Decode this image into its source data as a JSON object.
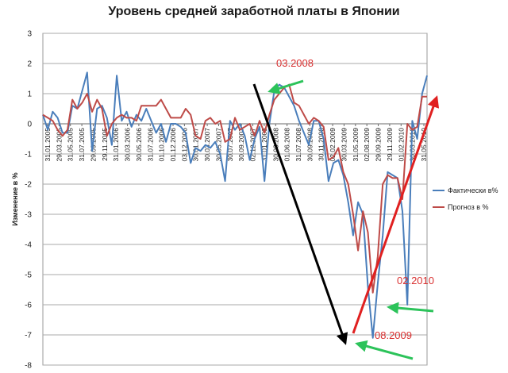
{
  "chart_data": {
    "type": "line",
    "title": "Уровень  средней заработной платы в Японии",
    "xlabel": "",
    "ylabel": "Изменение в %",
    "ylim": [
      -8,
      3
    ],
    "yticks": [
      "3",
      "2",
      "1",
      "0",
      "-1",
      "-2",
      "-3",
      "-4",
      "-5",
      "-6",
      "-7",
      "-8"
    ],
    "grid": true,
    "legend": "right",
    "x_tick_labels": [
      "31.01.2005",
      "29.03.2005",
      "31.05.2005",
      "31.07.2005",
      "29.09.2005",
      "29.11.2005",
      "31.01.2006",
      "30.03.2006",
      "30.05.2006",
      "31.07.2006",
      "01.10.2006",
      "01.12.2006",
      "03.12.2006",
      "30.01.2007",
      "30.03.2007",
      "30.05.2007",
      "30.07.2007",
      "30.09.2007",
      "02.12.2007",
      "31.01.2008",
      "30.03.2008",
      "01.06.2008",
      "31.07.2008",
      "30.09.2008",
      "30.11.2008",
      "02.02.2009",
      "30.03.2009",
      "31.05.2009",
      "02.08.2009",
      "29.09.2009",
      "29.11.2009",
      "01.02.2010",
      "30.03.2010",
      "31.05.2010"
    ],
    "series": [
      {
        "name": "Фактически в%",
        "color": "#4a7ebb",
        "values": [
          0.3,
          -0.2,
          0.4,
          0.2,
          -0.3,
          -0.3,
          0.6,
          0.5,
          1.1,
          1.7,
          -0.9,
          0.5,
          0.6,
          0.2,
          -0.7,
          1.6,
          0.1,
          0.4,
          -0.1,
          0.3,
          0.1,
          0.5,
          0.1,
          -0.3,
          0.0,
          -0.6,
          0.0,
          0.0,
          -0.1,
          -0.3,
          -1.3,
          -0.8,
          -0.9,
          -0.7,
          -0.8,
          -0.6,
          -1.0,
          -1.9,
          0.1,
          -0.2,
          0.0,
          -0.4,
          -1.2,
          -0.5,
          -0.1,
          -1.9,
          0.0,
          1.1,
          1.3,
          1.2,
          0.9,
          0.6,
          0.1,
          -0.3,
          -0.7,
          0.1,
          0.1,
          -0.5,
          -1.9,
          -1.3,
          -1.2,
          -1.7,
          -2.6,
          -3.7,
          -2.6,
          -3.0,
          -5.4,
          -7.1,
          -5.3,
          -3.7,
          -1.6,
          -1.7,
          -1.8,
          -2.9,
          -6.0,
          0.1,
          -0.5,
          1.0,
          1.6
        ]
      },
      {
        "name": "Прогноз в %",
        "color": "#be4b48",
        "values": [
          0.3,
          0.2,
          0.1,
          -0.2,
          -0.4,
          -0.2,
          0.8,
          0.5,
          0.7,
          1.0,
          0.4,
          0.8,
          0.5,
          -0.4,
          0.0,
          0.2,
          0.3,
          0.2,
          0.2,
          0.1,
          0.6,
          0.6,
          0.6,
          0.6,
          0.8,
          0.5,
          0.2,
          0.2,
          0.2,
          0.5,
          0.3,
          -0.4,
          -0.5,
          0.1,
          0.2,
          0.0,
          0.1,
          -0.6,
          -0.5,
          0.2,
          -0.2,
          -0.1,
          0.0,
          -0.4,
          0.1,
          -0.3,
          0.3,
          0.8,
          1.0,
          1.2,
          1.3,
          0.7,
          0.6,
          0.3,
          0.0,
          0.2,
          0.1,
          -0.1,
          -1.2,
          -1.1,
          -0.8,
          -1.6,
          -2.0,
          -3.0,
          -4.2,
          -2.9,
          -3.6,
          -5.6,
          -4.4,
          -2.0,
          -1.7,
          -1.8,
          -1.8,
          -2.5,
          0.0,
          -0.2,
          -0.1,
          0.9,
          0.9
        ]
      }
    ],
    "annotations": [
      {
        "text": "03.2008",
        "color": "#d93030"
      },
      {
        "text": "02.2010",
        "color": "#d93030"
      },
      {
        "text": "08.2009",
        "color": "#d93030"
      }
    ]
  }
}
